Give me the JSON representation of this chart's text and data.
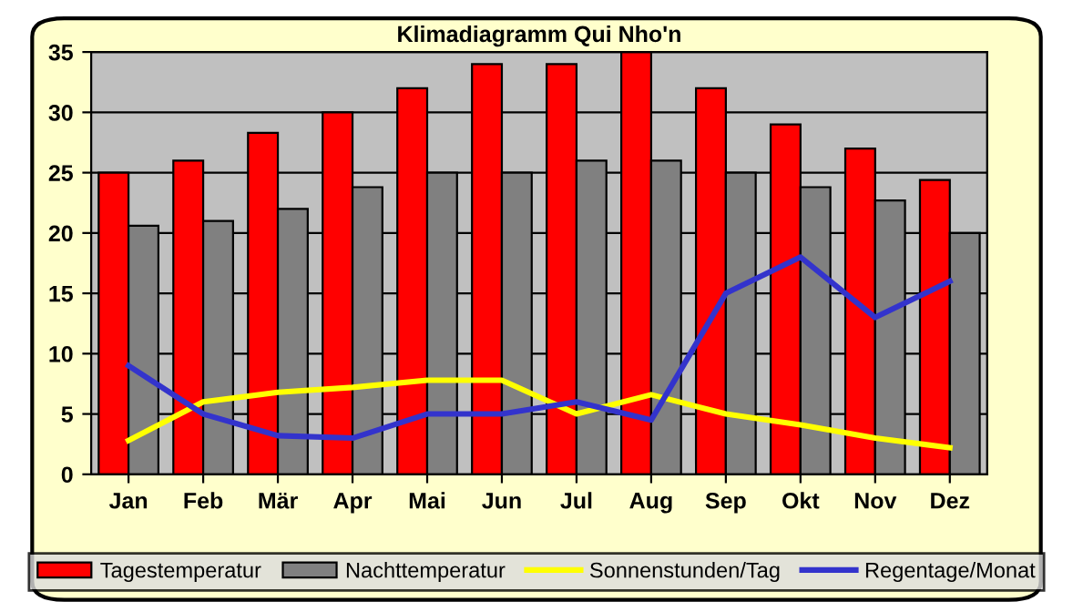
{
  "chart_data": {
    "type": "bar",
    "title": "Klimadiagramm Qui Nho'n",
    "categories": [
      "Jan",
      "Feb",
      "Mär",
      "Apr",
      "Mai",
      "Jun",
      "Jul",
      "Aug",
      "Sep",
      "Okt",
      "Nov",
      "Dez"
    ],
    "series": [
      {
        "name": "Tagestemperatur",
        "color": "#ff0000",
        "values": [
          25,
          26,
          28.3,
          30,
          32,
          34,
          34,
          35,
          32,
          29,
          27,
          24.4
        ]
      },
      {
        "name": "Nachttemperatur",
        "color": "#808080",
        "values": [
          20.6,
          21,
          22,
          23.8,
          25,
          25,
          26,
          26,
          25,
          23.8,
          22.7,
          20
        ]
      },
      {
        "name": "Sonnenstunden/Tag",
        "type": "line",
        "color": "#ffff00",
        "values": [
          2.8,
          6,
          6.8,
          7.2,
          7.8,
          7.8,
          5,
          6.6,
          5,
          4.1,
          3,
          2.2
        ]
      },
      {
        "name": "Regentage/Monat",
        "type": "line",
        "color": "#3333cc",
        "values": [
          9,
          5,
          3.2,
          3,
          5,
          5,
          6,
          4.5,
          15,
          18,
          13,
          16
        ]
      }
    ],
    "ylim": [
      0,
      35
    ],
    "yticks": [
      0,
      5,
      10,
      15,
      20,
      25,
      30,
      35
    ],
    "grid": "y",
    "legend": "bottom"
  }
}
